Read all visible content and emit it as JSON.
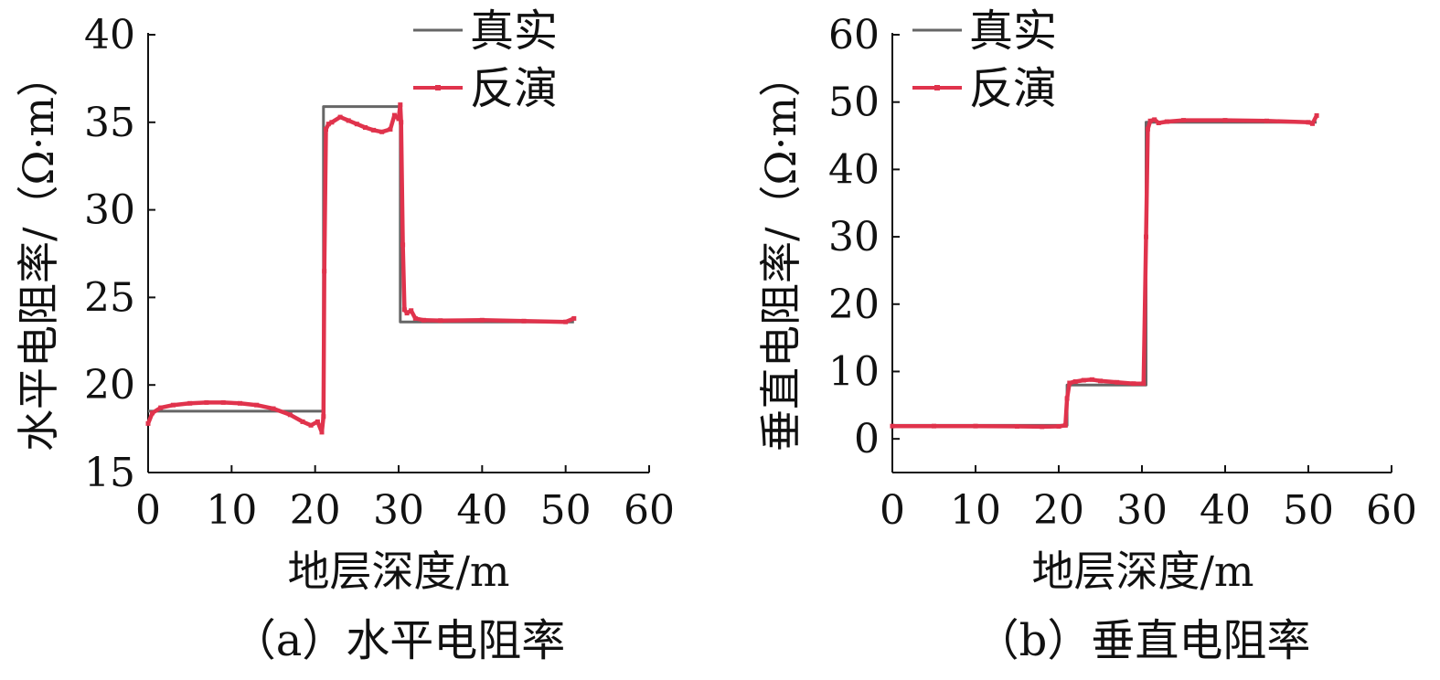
{
  "chart_data": [
    {
      "type": "line",
      "caption": "（a）水平电阻率",
      "xlabel": "地层深度/m",
      "ylabel": "水平电阻率/（Ω·m）",
      "xlim": [
        0,
        60
      ],
      "ylim": [
        15,
        40
      ],
      "xticks": [
        0,
        10,
        20,
        30,
        40,
        50,
        60
      ],
      "yticks": [
        15,
        20,
        25,
        30,
        35,
        40
      ],
      "grid": false,
      "legend_position": "top-right",
      "series": [
        {
          "name": "真实",
          "color": "#666666",
          "x": [
            0,
            21,
            21,
            30.2,
            30.2,
            51
          ],
          "y": [
            18.5,
            18.5,
            35.9,
            35.9,
            23.6,
            23.6
          ]
        },
        {
          "name": "反演",
          "color": "#e0334c",
          "x": [
            0,
            0.5,
            1.5,
            3,
            5,
            7,
            9,
            11,
            13,
            15,
            17,
            18.5,
            19.5,
            20.3,
            20.8,
            21,
            21.1,
            21.3,
            21.6,
            22,
            23,
            24,
            25,
            26,
            27,
            28,
            29,
            29.5,
            30,
            30.2,
            30.3,
            30.5,
            30.7,
            31,
            31.5,
            32,
            33,
            35,
            40,
            45,
            50,
            51
          ],
          "y": [
            17.8,
            18.4,
            18.7,
            18.85,
            18.95,
            19.0,
            19.0,
            18.95,
            18.85,
            18.65,
            18.3,
            17.9,
            17.7,
            17.9,
            17.3,
            18.2,
            26.5,
            34.6,
            34.9,
            35.0,
            35.3,
            35.1,
            34.9,
            34.7,
            34.55,
            34.45,
            34.6,
            35.4,
            35.2,
            36.0,
            35.0,
            28.0,
            24.3,
            24.1,
            24.25,
            23.8,
            23.7,
            23.68,
            23.7,
            23.65,
            23.6,
            23.8
          ]
        }
      ]
    },
    {
      "type": "line",
      "caption": "（b）垂直电阻率",
      "xlabel": "地层深度/m",
      "ylabel": "垂直电阻率/（Ω·m）",
      "xlim": [
        0,
        60
      ],
      "ylim": [
        -5,
        60
      ],
      "xticks": [
        0,
        10,
        20,
        30,
        40,
        50,
        60
      ],
      "yticks": [
        0,
        10,
        20,
        30,
        40,
        50,
        60
      ],
      "grid": false,
      "legend_position": "top-left",
      "series": [
        {
          "name": "真实",
          "color": "#666666",
          "x": [
            0,
            21,
            21,
            30.5,
            30.5,
            51
          ],
          "y": [
            2,
            2,
            8,
            8,
            47,
            47
          ]
        },
        {
          "name": "反演",
          "color": "#e0334c",
          "x": [
            0,
            5,
            10,
            15,
            18,
            20,
            20.8,
            21,
            21.3,
            22,
            23,
            24,
            25,
            27,
            29,
            30.2,
            30.5,
            30.7,
            31,
            31.5,
            32,
            33,
            35,
            40,
            45,
            50,
            50.5,
            51
          ],
          "y": [
            1.9,
            1.9,
            1.9,
            1.85,
            1.8,
            1.85,
            2.0,
            6.0,
            8.3,
            8.5,
            8.7,
            8.8,
            8.6,
            8.4,
            8.2,
            8.2,
            30,
            46.0,
            47.2,
            47.4,
            46.9,
            47.1,
            47.3,
            47.3,
            47.2,
            47.0,
            46.8,
            48.0
          ]
        }
      ]
    }
  ]
}
